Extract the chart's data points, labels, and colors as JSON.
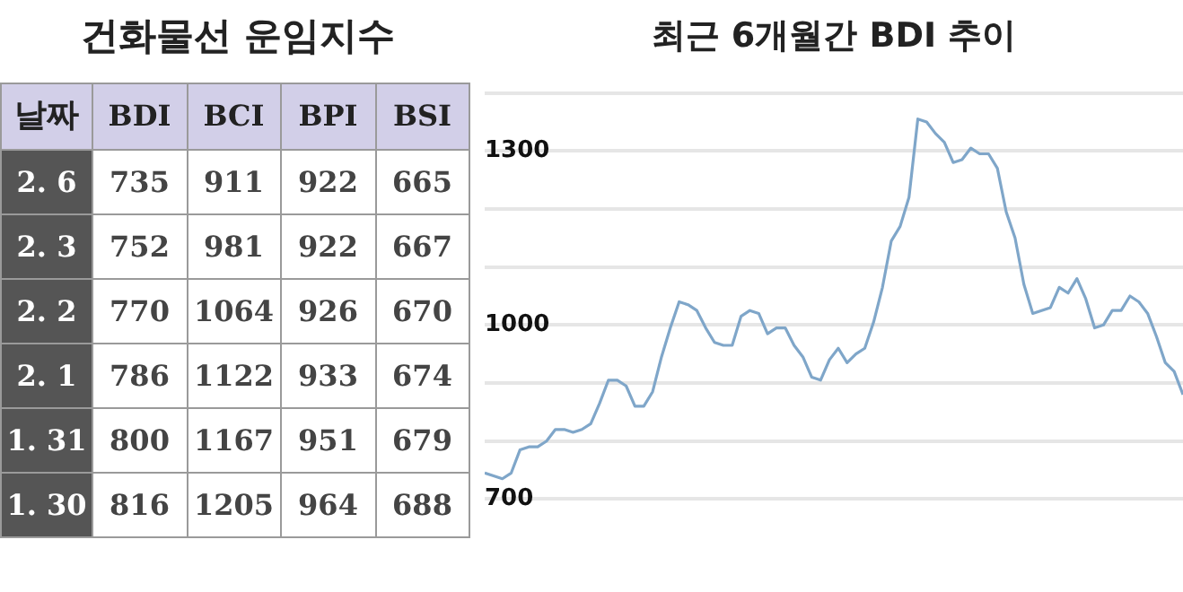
{
  "chart_data": [
    {
      "type": "other",
      "title": "건화물선 운임지수",
      "xlabel": "날짜",
      "categories": [
        "2. 6",
        "2. 3",
        "2. 2",
        "2. 1",
        "1. 31",
        "1. 30"
      ],
      "data_labels": true,
      "series": [
        {
          "name": "BDI",
          "values": [
            735,
            752,
            770,
            786,
            800,
            816
          ]
        },
        {
          "name": "BCI",
          "values": [
            911,
            981,
            1064,
            1122,
            1167,
            1205
          ]
        },
        {
          "name": "BPI",
          "values": [
            922,
            922,
            926,
            933,
            951,
            964
          ]
        },
        {
          "name": "BSI",
          "values": [
            665,
            667,
            670,
            674,
            679,
            688
          ]
        }
      ]
    },
    {
      "type": "line",
      "title": "최근 6개월간 BDI 추이",
      "categories": [
        null,
        null,
        null,
        null,
        null,
        null,
        null,
        null,
        null,
        null,
        null,
        null,
        null,
        null,
        null,
        null,
        null,
        null,
        null,
        null,
        null,
        null,
        null,
        null,
        null,
        null,
        null,
        null,
        null,
        null,
        null,
        null,
        null,
        null,
        null,
        null,
        null,
        null,
        null,
        null,
        null,
        null,
        null,
        null,
        null,
        null,
        null,
        null,
        null,
        null,
        null,
        null,
        null,
        null,
        null,
        null,
        null,
        null,
        null,
        null,
        null,
        null,
        null,
        null,
        null,
        null,
        null,
        null,
        null,
        null,
        null,
        null,
        null,
        null,
        null,
        null,
        null,
        null,
        null,
        null
      ],
      "series": [
        {
          "color": "#7fa6c9",
          "values": [
            745,
            740,
            735,
            745,
            785,
            790,
            790,
            800,
            820,
            820,
            815,
            820,
            830,
            865,
            905,
            905,
            895,
            860,
            860,
            885,
            945,
            995,
            1040,
            1035,
            1025,
            995,
            970,
            965,
            965,
            1015,
            1025,
            1020,
            985,
            995,
            995,
            965,
            945,
            910,
            905,
            940,
            960,
            935,
            950,
            960,
            1005,
            1065,
            1145,
            1170,
            1220,
            1355,
            1350,
            1330,
            1315,
            1280,
            1285,
            1305,
            1295,
            1295,
            1270,
            1195,
            1150,
            1070,
            1020,
            1025,
            1030,
            1065,
            1055,
            1080,
            1045,
            995,
            1000,
            1025,
            1025,
            1050,
            1040,
            1020,
            980,
            935,
            920,
            880
          ]
        }
      ],
      "ylim": [
        700,
        1400
      ],
      "yticks": [
        700,
        {
          "value": 800,
          "label": null
        },
        {
          "value": 900,
          "label": null
        },
        1000,
        {
          "value": 1100,
          "label": null
        },
        {
          "value": 1200,
          "label": null
        },
        1300,
        {
          "value": 1400,
          "label": null
        }
      ],
      "grid": "y",
      "marker": "none",
      "line_style": "solid",
      "legend": false,
      "tick_labels": "y"
    }
  ]
}
